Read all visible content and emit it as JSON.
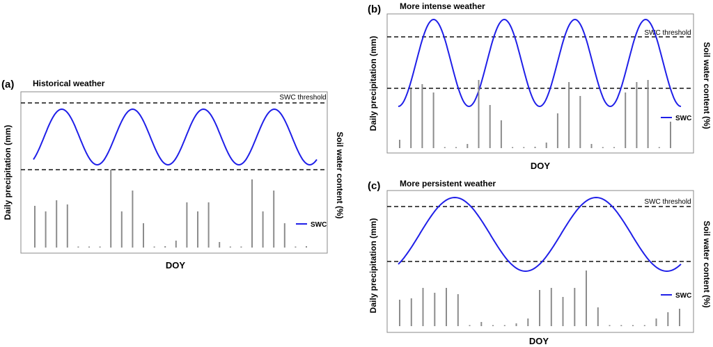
{
  "colors": {
    "swc_line": "#1f1fe8",
    "bars": "#8c8c8c",
    "frame": "#8a8a8a",
    "threshold": "#111111"
  },
  "chart_data": [
    {
      "type": "line+bar",
      "panel": "(a)",
      "title": "Historical weather",
      "xlabel": "DOY",
      "ylabel_left": "Daily precipitation (mm)",
      "ylabel_right": "Soil water content (%)",
      "threshold_label": "SWC threshold",
      "legend": "SWC",
      "swc": {
        "cycles": 4,
        "phase": 0.85
      },
      "precipitation": [
        60,
        52,
        68,
        62,
        0,
        1,
        0,
        112,
        52,
        82,
        35,
        0,
        2,
        10,
        65,
        52,
        65,
        8,
        0,
        1,
        98,
        52,
        82,
        35,
        0,
        2
      ]
    },
    {
      "type": "line+bar",
      "panel": "(b)",
      "title": "More intense weather",
      "xlabel": "DOY",
      "ylabel_left": "Daily precipitation (mm)",
      "ylabel_right": "Soil water content (%)",
      "threshold_label": "SWC threshold",
      "legend": "SWC",
      "swc": {
        "cycles": 4,
        "phase": 0.75
      },
      "precipitation": [
        12,
        85,
        92,
        80,
        0,
        1,
        6,
        98,
        62,
        40,
        0,
        0,
        2,
        8,
        50,
        95,
        75,
        6,
        0,
        1,
        80,
        95,
        98,
        0,
        38
      ]
    },
    {
      "type": "line+bar",
      "panel": "(c)",
      "title": "More persistent weather",
      "xlabel": "DOY",
      "ylabel_left": "Daily precipitation (mm)",
      "ylabel_right": "Soil water content (%)",
      "threshold_label": "SWC threshold",
      "legend": "SWC",
      "swc": {
        "cycles": 2,
        "phase": 0.85
      },
      "precipitation": [
        38,
        40,
        55,
        48,
        55,
        46,
        0,
        6,
        0,
        1,
        4,
        11,
        52,
        55,
        42,
        55,
        80,
        27,
        0,
        0,
        0,
        1,
        11,
        20,
        25
      ]
    }
  ]
}
